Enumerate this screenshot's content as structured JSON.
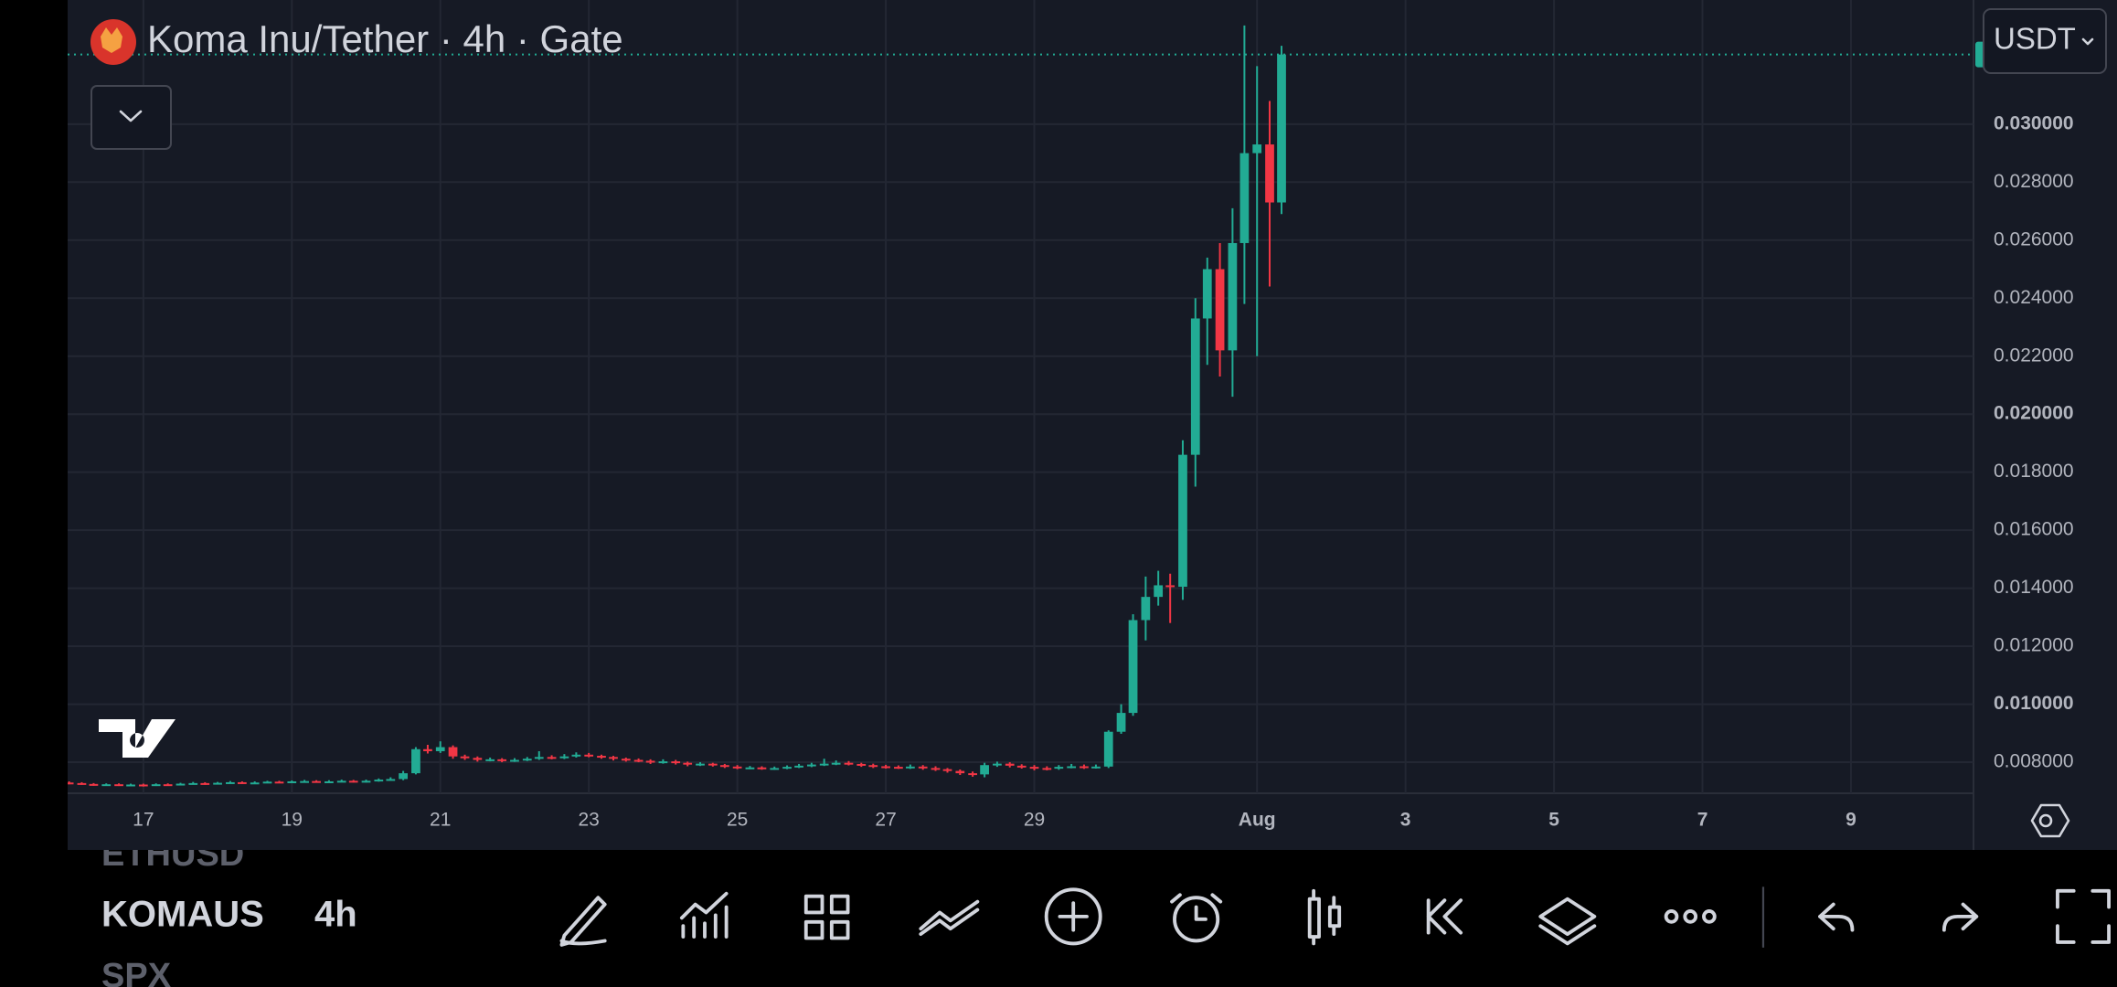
{
  "header": {
    "title": "Koma Inu/Tether · 4h · Gate",
    "currency": "USDT"
  },
  "chart_data": {
    "type": "candlestick",
    "grid": true,
    "price_line": true,
    "up_color": "#22ab94",
    "down_color": "#f23645",
    "xlim": [
      15.98,
      41.65
    ],
    "ylim": [
      0.00693,
      0.03428
    ],
    "xticks": [
      17,
      19,
      21,
      23,
      25,
      27,
      29,
      {
        "value": 32,
        "label": "Aug"
      },
      {
        "value": 34,
        "label": "3"
      },
      {
        "value": 36,
        "label": "5"
      },
      {
        "value": 38,
        "label": "7"
      },
      {
        "value": 40,
        "label": "9"
      }
    ],
    "yticks": [
      {
        "value": 0.008,
        "label": "0.008000"
      },
      {
        "value": 0.01,
        "label": "0.010000"
      },
      {
        "value": 0.012,
        "label": "0.012000"
      },
      {
        "value": 0.014,
        "label": "0.014000"
      },
      {
        "value": 0.016,
        "label": "0.016000"
      },
      {
        "value": 0.018,
        "label": "0.018000"
      },
      {
        "value": 0.02,
        "label": "0.020000"
      },
      {
        "value": 0.022,
        "label": "0.022000"
      },
      {
        "value": 0.024,
        "label": "0.024000"
      },
      {
        "value": 0.026,
        "label": "0.026000"
      },
      {
        "value": 0.028,
        "label": "0.028000"
      },
      {
        "value": 0.03,
        "label": "0.030000"
      }
    ],
    "x": [
      16,
      16.17,
      16.33,
      16.5,
      16.67,
      16.83,
      17,
      17.17,
      17.33,
      17.5,
      17.67,
      17.83,
      18,
      18.17,
      18.33,
      18.5,
      18.67,
      18.83,
      19,
      19.17,
      19.33,
      19.5,
      19.67,
      19.83,
      20,
      20.17,
      20.33,
      20.5,
      20.67,
      20.83,
      21,
      21.17,
      21.33,
      21.5,
      21.67,
      21.83,
      22,
      22.17,
      22.33,
      22.5,
      22.67,
      22.83,
      23,
      23.17,
      23.33,
      23.5,
      23.67,
      23.83,
      24,
      24.17,
      24.33,
      24.5,
      24.67,
      24.83,
      25,
      25.17,
      25.33,
      25.5,
      25.67,
      25.83,
      26,
      26.17,
      26.33,
      26.5,
      26.67,
      26.83,
      27,
      27.17,
      27.33,
      27.5,
      27.67,
      27.83,
      28,
      28.17,
      28.33,
      28.5,
      28.67,
      28.83,
      29,
      29.17,
      29.33,
      29.5,
      29.67,
      29.83,
      30,
      30.17,
      30.33,
      30.5,
      30.67,
      30.83,
      31,
      31.17,
      31.33,
      31.5,
      31.67,
      31.83,
      32,
      32.17,
      32.33
    ],
    "open": [
      0.0073,
      0.00728,
      0.00725,
      0.00722,
      0.00724,
      0.00721,
      0.00723,
      0.0072,
      0.00724,
      0.00722,
      0.00726,
      0.00728,
      0.00725,
      0.00729,
      0.00731,
      0.00728,
      0.0073,
      0.00733,
      0.00731,
      0.00734,
      0.00735,
      0.00733,
      0.00734,
      0.00736,
      0.00733,
      0.00736,
      0.0074,
      0.00742,
      0.00762,
      0.00845,
      0.00838,
      0.00852,
      0.0082,
      0.00815,
      0.00808,
      0.0081,
      0.00806,
      0.00808,
      0.00812,
      0.00818,
      0.00815,
      0.0082,
      0.00826,
      0.00822,
      0.00818,
      0.00812,
      0.00808,
      0.00805,
      0.008,
      0.00803,
      0.00798,
      0.00792,
      0.00795,
      0.0079,
      0.00785,
      0.0078,
      0.00782,
      0.00778,
      0.0078,
      0.00784,
      0.00788,
      0.00792,
      0.00795,
      0.00798,
      0.00794,
      0.0079,
      0.00786,
      0.00784,
      0.00782,
      0.00785,
      0.0078,
      0.00776,
      0.0077,
      0.00762,
      0.00758,
      0.0079,
      0.00795,
      0.00788,
      0.00784,
      0.0078,
      0.00778,
      0.00784,
      0.00786,
      0.00782,
      0.00785,
      0.00905,
      0.0097,
      0.0129,
      0.0137,
      0.0141,
      0.01405,
      0.0186,
      0.0233,
      0.025,
      0.0222,
      0.0259,
      0.029,
      0.0293,
      0.0273
    ],
    "high": [
      0.00734,
      0.00731,
      0.00728,
      0.00727,
      0.00727,
      0.00726,
      0.00726,
      0.00727,
      0.00727,
      0.00729,
      0.00732,
      0.00731,
      0.00732,
      0.00735,
      0.00734,
      0.00734,
      0.00736,
      0.00736,
      0.00737,
      0.00739,
      0.00738,
      0.00738,
      0.0074,
      0.00739,
      0.0074,
      0.00744,
      0.00748,
      0.0077,
      0.00852,
      0.0086,
      0.00872,
      0.00858,
      0.00826,
      0.0082,
      0.00816,
      0.00814,
      0.00814,
      0.00818,
      0.00838,
      0.00824,
      0.00828,
      0.00834,
      0.00832,
      0.00826,
      0.00822,
      0.00816,
      0.00813,
      0.0081,
      0.0081,
      0.00808,
      0.00802,
      0.008,
      0.00798,
      0.00794,
      0.0079,
      0.00787,
      0.00786,
      0.00785,
      0.00789,
      0.00794,
      0.00798,
      0.00812,
      0.00806,
      0.00804,
      0.00798,
      0.00795,
      0.00791,
      0.00789,
      0.00792,
      0.0079,
      0.00786,
      0.0078,
      0.00775,
      0.00768,
      0.00798,
      0.00802,
      0.008,
      0.00793,
      0.0079,
      0.00786,
      0.0079,
      0.00794,
      0.00792,
      0.00792,
      0.0091,
      0.01,
      0.0131,
      0.0144,
      0.0146,
      0.0145,
      0.0191,
      0.024,
      0.0254,
      0.0259,
      0.0271,
      0.0334,
      0.032,
      0.0308,
      0.0327
    ],
    "low": [
      0.00724,
      0.00722,
      0.00719,
      0.0072,
      0.00718,
      0.00719,
      0.00716,
      0.00718,
      0.00719,
      0.0072,
      0.00724,
      0.00722,
      0.00723,
      0.00727,
      0.00725,
      0.00726,
      0.00728,
      0.00728,
      0.00729,
      0.00731,
      0.0073,
      0.0073,
      0.00731,
      0.0073,
      0.0073,
      0.00733,
      0.00737,
      0.00738,
      0.00758,
      0.0083,
      0.00832,
      0.00812,
      0.00808,
      0.00802,
      0.00803,
      0.008,
      0.00801,
      0.00804,
      0.00808,
      0.0081,
      0.00811,
      0.00816,
      0.00817,
      0.00812,
      0.00806,
      0.00802,
      0.008,
      0.00794,
      0.00795,
      0.00792,
      0.00786,
      0.00787,
      0.00785,
      0.0078,
      0.00776,
      0.00776,
      0.00774,
      0.00774,
      0.00776,
      0.0078,
      0.00783,
      0.00787,
      0.0079,
      0.00789,
      0.00784,
      0.0078,
      0.00778,
      0.00777,
      0.00777,
      0.00774,
      0.0077,
      0.00764,
      0.00756,
      0.0075,
      0.00748,
      0.00784,
      0.00782,
      0.00778,
      0.00772,
      0.00772,
      0.00774,
      0.00779,
      0.00777,
      0.00778,
      0.0078,
      0.00898,
      0.0096,
      0.0122,
      0.0134,
      0.0128,
      0.0136,
      0.0175,
      0.0217,
      0.0213,
      0.0206,
      0.0238,
      0.022,
      0.0244,
      0.0269
    ],
    "close": [
      0.00728,
      0.00725,
      0.00722,
      0.00724,
      0.00721,
      0.00723,
      0.0072,
      0.00724,
      0.00722,
      0.00726,
      0.00728,
      0.00725,
      0.00729,
      0.00731,
      0.00728,
      0.0073,
      0.00733,
      0.00731,
      0.00734,
      0.00735,
      0.00733,
      0.00734,
      0.00736,
      0.00733,
      0.00736,
      0.0074,
      0.00742,
      0.00762,
      0.00845,
      0.00838,
      0.00852,
      0.0082,
      0.00815,
      0.00808,
      0.0081,
      0.00806,
      0.00808,
      0.00812,
      0.00818,
      0.00815,
      0.0082,
      0.00826,
      0.00822,
      0.00818,
      0.00812,
      0.00808,
      0.00805,
      0.008,
      0.00803,
      0.00798,
      0.00792,
      0.00795,
      0.0079,
      0.00785,
      0.0078,
      0.00782,
      0.00778,
      0.0078,
      0.00784,
      0.00788,
      0.00792,
      0.00795,
      0.00798,
      0.00794,
      0.0079,
      0.00786,
      0.00784,
      0.00782,
      0.00785,
      0.0078,
      0.00776,
      0.0077,
      0.00762,
      0.00758,
      0.0079,
      0.00795,
      0.00788,
      0.00784,
      0.0078,
      0.00778,
      0.00784,
      0.00786,
      0.00782,
      0.00785,
      0.00905,
      0.0097,
      0.0129,
      0.0137,
      0.0141,
      0.01405,
      0.0186,
      0.0233,
      0.025,
      0.0222,
      0.0259,
      0.029,
      0.0293,
      0.0273,
      0.0324
    ]
  },
  "toolbar": {
    "symbols": [
      "ETHUSD",
      "KOMAUS",
      "SPX"
    ],
    "interval": "4h"
  }
}
